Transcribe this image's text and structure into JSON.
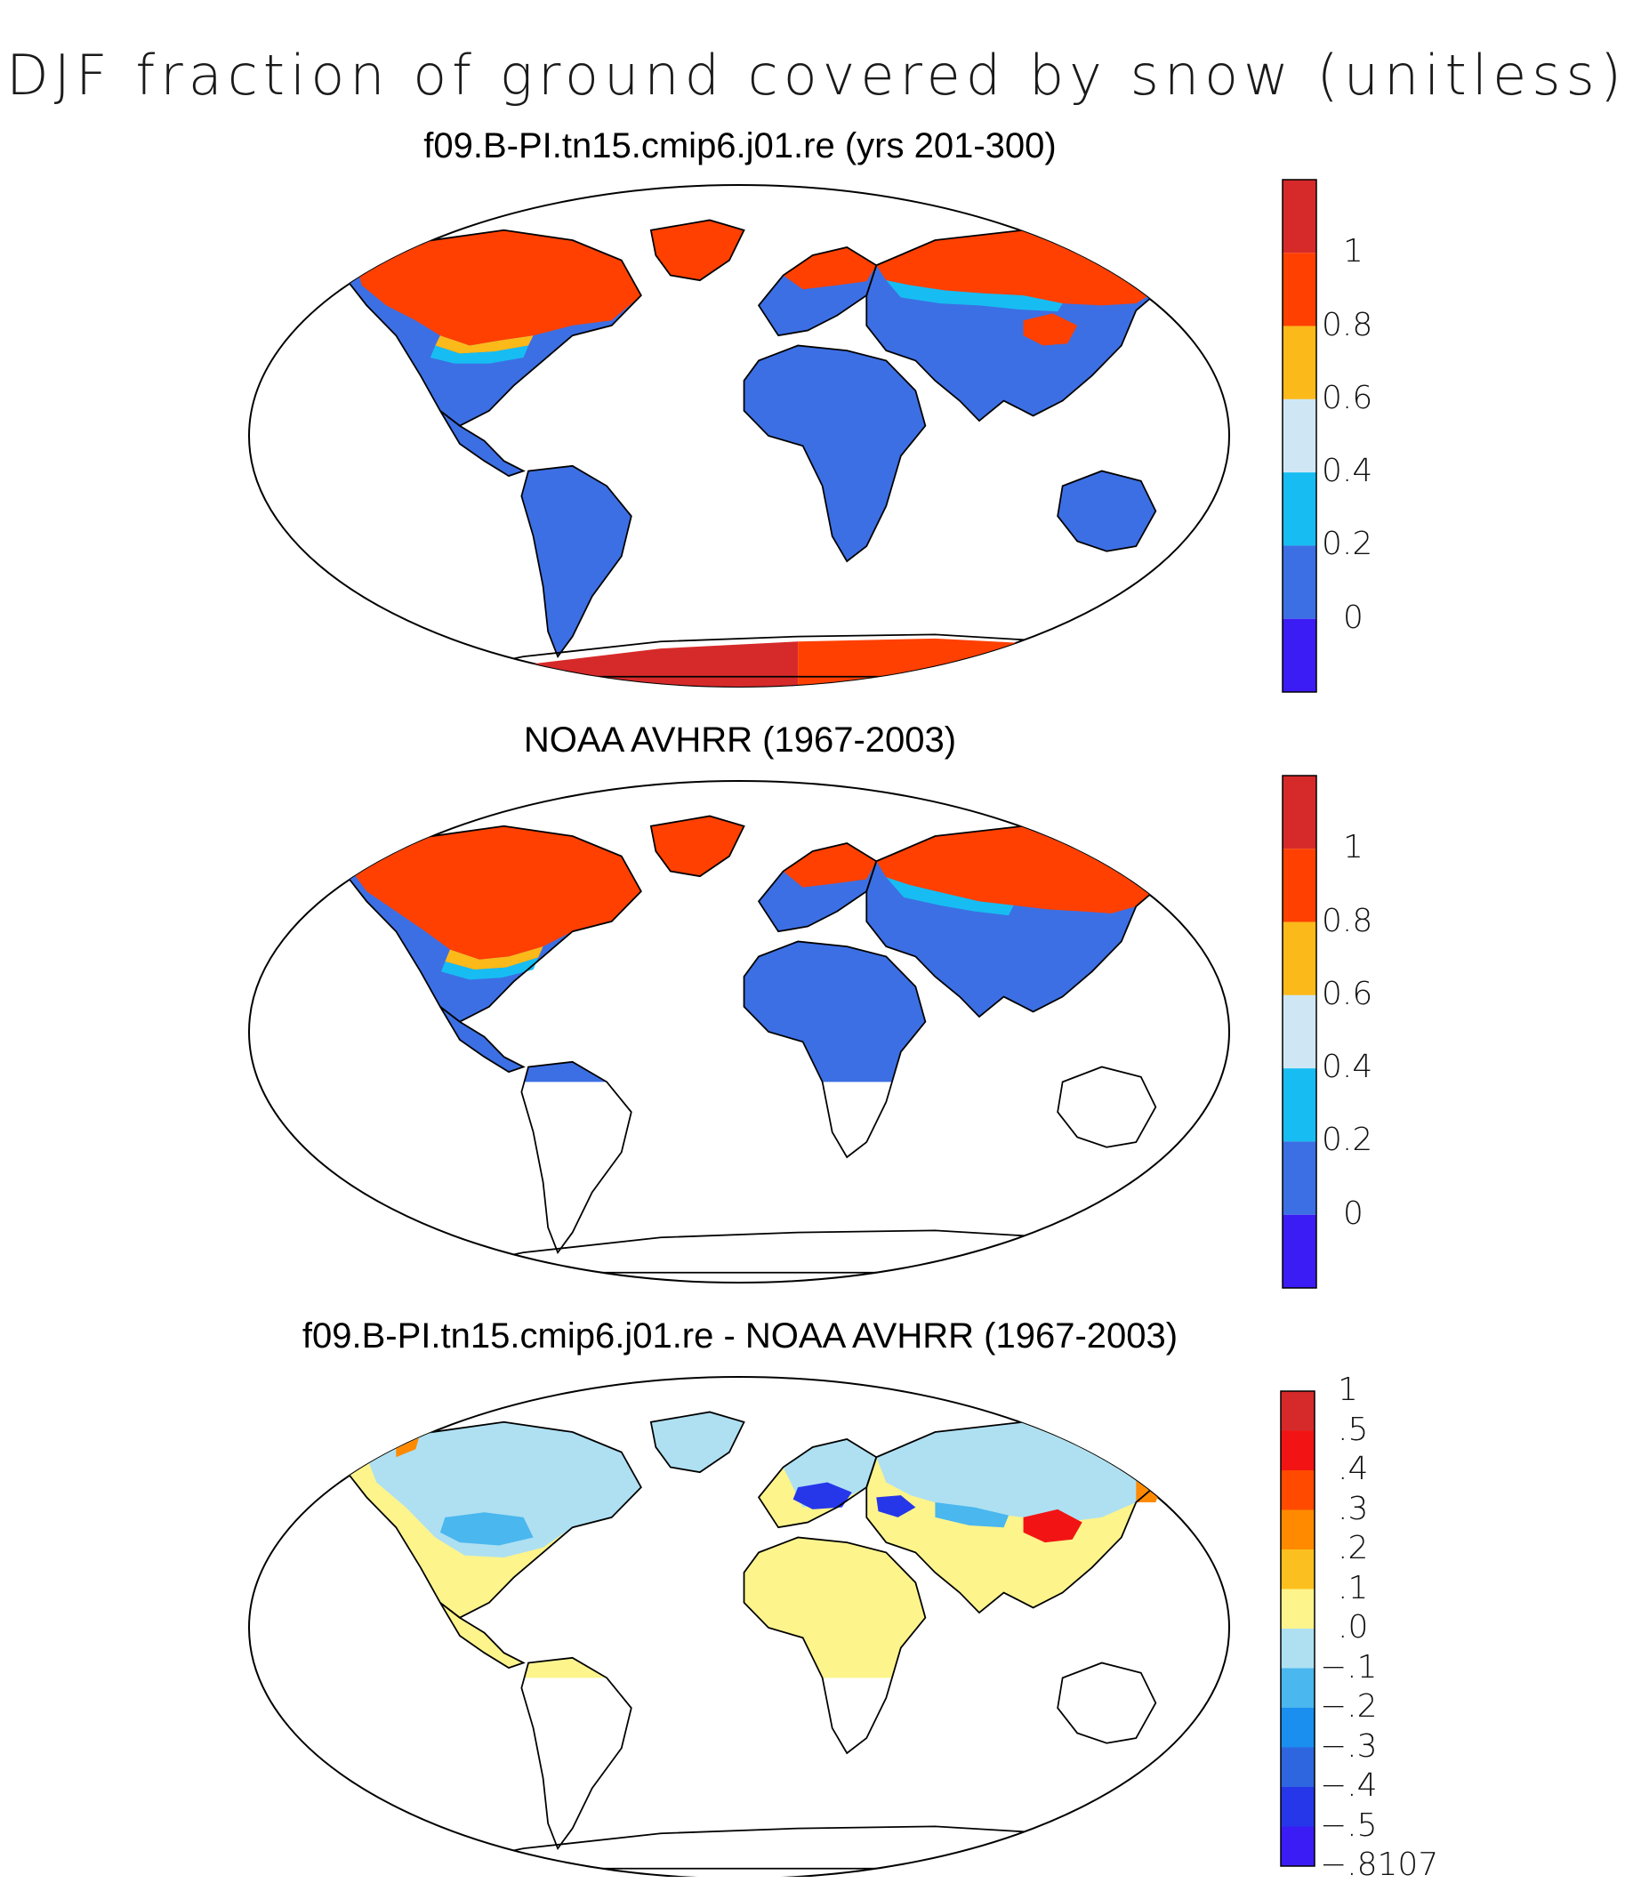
{
  "title": "DJF fraction of ground covered by snow (unitless)",
  "panels": [
    {
      "title": "f09.B-PI.tn15.cmip6.j01.re (yrs 201-300)",
      "colorbar": {
        "labels": [
          "1",
          "0.8",
          "0.6",
          "0.4",
          "0.2",
          "0"
        ],
        "colors": [
          "#d62a2a",
          "#ff4000",
          "#fbb91a",
          "#cfe7f5",
          "#17bdf2",
          "#3c6fe4",
          "#3b1cf5"
        ]
      }
    },
    {
      "title": "NOAA AVHRR (1967-2003)",
      "colorbar": {
        "labels": [
          "1",
          "0.8",
          "0.6",
          "0.4",
          "0.2",
          "0"
        ],
        "colors": [
          "#d62a2a",
          "#ff4000",
          "#fbb91a",
          "#cfe7f5",
          "#17bdf2",
          "#3c6fe4",
          "#3b1cf5"
        ]
      }
    },
    {
      "title": "f09.B-PI.tn15.cmip6.j01.re - NOAA AVHRR (1967-2003)",
      "colorbar": {
        "labels": [
          "1",
          ".5",
          ".4",
          ".3",
          ".2",
          ".1",
          ".0",
          "−.1",
          "−.2",
          "−.3",
          "−.4",
          "−.5",
          "−.8107"
        ],
        "colors": [
          "#d62a2a",
          "#f21414",
          "#ff4a00",
          "#ff8a00",
          "#fbc01f",
          "#fdf48c",
          "#aee0f2",
          "#4ab7ee",
          "#1a8ff0",
          "#2e66e0",
          "#2637ea",
          "#3b1cf5"
        ]
      }
    }
  ]
}
